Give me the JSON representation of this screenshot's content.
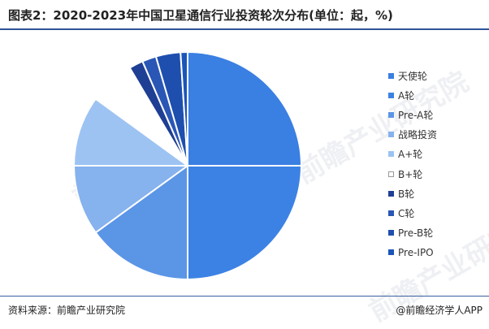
{
  "header": {
    "title": "图表2：2020-2023年中国卫星通信行业投资轮次分布(单位：起，%)"
  },
  "footer": {
    "source": "资料来源：前瞻产业研究院",
    "brand": "@前瞻经济学人APP"
  },
  "watermark": {
    "text": "前瞻产业研究院"
  },
  "colors": {
    "rule": "#2f5597",
    "outline": "#ffffff"
  },
  "chart_data": {
    "type": "pie",
    "title": "图表2：2020-2023年中国卫星通信行业投资轮次分布(单位：起，%)",
    "start_angle_deg": 0,
    "direction": "clockwise",
    "legend_position": "right",
    "categories": [
      "天使轮",
      "A轮",
      "Pre-A轮",
      "战略投资",
      "A+轮",
      "B+轮",
      "B轮",
      "C轮",
      "Pre-B轮",
      "Pre-IPO"
    ],
    "values": [
      25.0,
      25.0,
      15.0,
      10.0,
      10.0,
      6.5,
      2.0,
      2.0,
      3.5,
      1.0
    ],
    "colors": [
      "#3a7fe2",
      "#3c82e4",
      "#5b95e6",
      "#86b2ee",
      "#9dc3f3",
      "#ffffff",
      "#1f3f95",
      "#2a56b5",
      "#1e4fae",
      "#1b55b8"
    ]
  }
}
